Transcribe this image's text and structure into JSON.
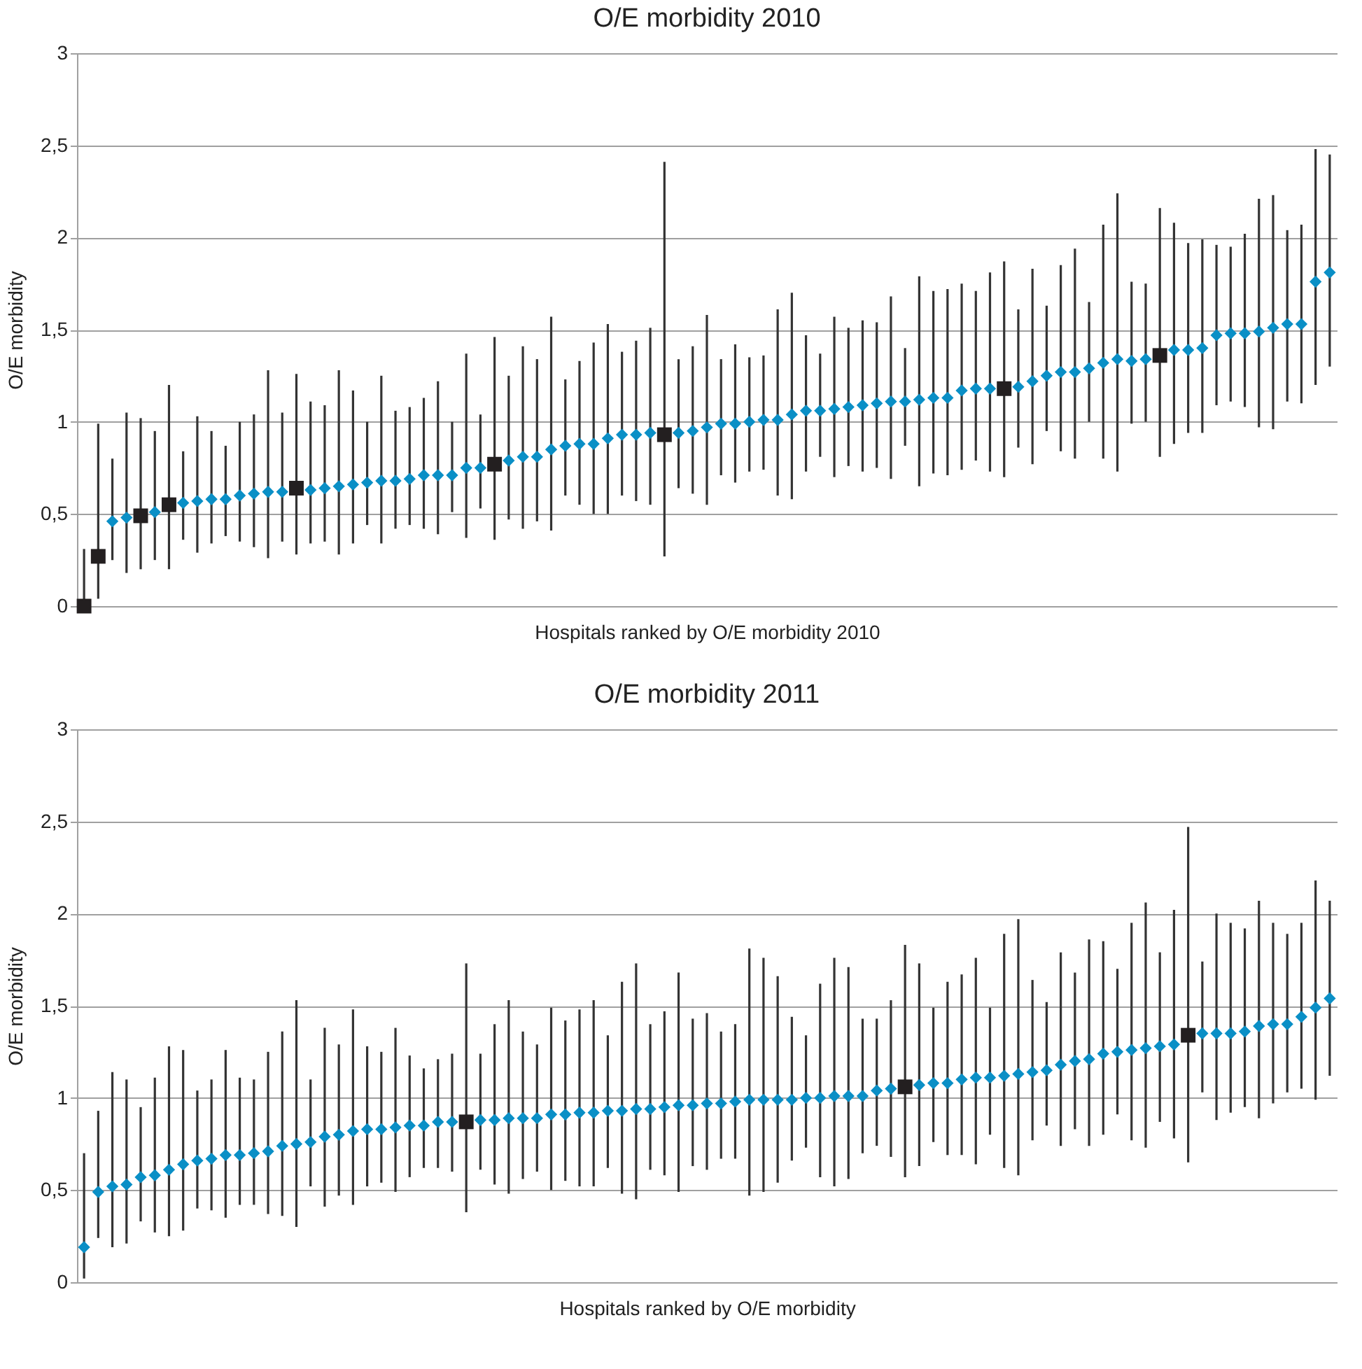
{
  "chart_data": [
    {
      "type": "scatter",
      "title": "O/E morbidity 2010",
      "xlabel": "Hospitals ranked by O/E morbidity 2010",
      "ylabel": "O/E morbidity",
      "categories": [
        null,
        null,
        null,
        null,
        null,
        null,
        null,
        null,
        null,
        null,
        null,
        null,
        null,
        null,
        null,
        null,
        null,
        null,
        null,
        null,
        null,
        null,
        null,
        null,
        null,
        null,
        null,
        null,
        null,
        null,
        null,
        null,
        null,
        null,
        null,
        null,
        null,
        null,
        null,
        null,
        null,
        null,
        null,
        null,
        null,
        null,
        null,
        null,
        null,
        null,
        null,
        null,
        null,
        null,
        null,
        null,
        null,
        null,
        null,
        null,
        null,
        null,
        null,
        null,
        null,
        null,
        null,
        null,
        null,
        null,
        null,
        null,
        null,
        null,
        null,
        null,
        null,
        null,
        null,
        null,
        null,
        null,
        null,
        null,
        null,
        null,
        null,
        null,
        null
      ],
      "ylim": [
        0,
        3
      ],
      "yticks": [
        0,
        {
          "value": 0.5,
          "label": "0,5"
        },
        1,
        {
          "value": 1.5,
          "label": "1,5"
        },
        2,
        {
          "value": 2.5,
          "label": "2,5"
        },
        3
      ],
      "grid": "y",
      "tick_labels": "y",
      "series": [
        {
          "color": "#0a8fc6",
          "marker": "diamond",
          "values": [
            null,
            null,
            0.46,
            0.48,
            null,
            0.51,
            null,
            0.56,
            0.57,
            0.58,
            0.58,
            0.6,
            0.61,
            0.62,
            0.62,
            null,
            0.63,
            0.64,
            0.65,
            0.66,
            0.67,
            0.68,
            0.68,
            0.69,
            0.71,
            0.71,
            0.71,
            0.75,
            0.75,
            null,
            0.79,
            0.81,
            0.81,
            0.85,
            0.87,
            0.88,
            0.88,
            0.91,
            0.93,
            0.93,
            0.94,
            null,
            0.94,
            0.95,
            0.97,
            0.99,
            0.99,
            1.0,
            1.01,
            1.01,
            1.04,
            1.06,
            1.06,
            1.07,
            1.08,
            1.09,
            1.1,
            1.11,
            1.11,
            1.12,
            1.13,
            1.13,
            1.17,
            1.18,
            1.18,
            null,
            1.19,
            1.22,
            1.25,
            1.27,
            1.27,
            1.29,
            1.32,
            1.34,
            1.33,
            1.34,
            null,
            1.39,
            1.39,
            1.4,
            1.47,
            1.48,
            1.48,
            1.49,
            1.51,
            1.53,
            1.53,
            1.76,
            1.81
          ],
          "errors": [
            null,
            null,
            [
              0.25,
              0.8
            ],
            [
              0.18,
              1.05
            ],
            null,
            [
              0.25,
              0.95
            ],
            null,
            [
              0.36,
              0.84
            ],
            [
              0.29,
              1.03
            ],
            [
              0.34,
              0.95
            ],
            [
              0.38,
              0.87
            ],
            [
              0.35,
              1.0
            ],
            [
              0.32,
              1.04
            ],
            [
              0.26,
              1.28
            ],
            [
              0.35,
              1.05
            ],
            null,
            [
              0.34,
              1.11
            ],
            [
              0.35,
              1.09
            ],
            [
              0.28,
              1.28
            ],
            [
              0.34,
              1.17
            ],
            [
              0.44,
              1.0
            ],
            [
              0.34,
              1.25
            ],
            [
              0.42,
              1.06
            ],
            [
              0.44,
              1.08
            ],
            [
              0.42,
              1.13
            ],
            [
              0.39,
              1.22
            ],
            [
              0.51,
              1.0
            ],
            [
              0.37,
              1.37
            ],
            [
              0.53,
              1.04
            ],
            null,
            [
              0.47,
              1.25
            ],
            [
              0.42,
              1.41
            ],
            [
              0.46,
              1.34
            ],
            [
              0.41,
              1.57
            ],
            [
              0.6,
              1.23
            ],
            [
              0.55,
              1.33
            ],
            [
              0.5,
              1.43
            ],
            [
              0.5,
              1.53
            ],
            [
              0.6,
              1.38
            ],
            [
              0.57,
              1.44
            ],
            [
              0.55,
              1.51
            ],
            null,
            [
              0.64,
              1.34
            ],
            [
              0.61,
              1.41
            ],
            [
              0.55,
              1.58
            ],
            [
              0.71,
              1.34
            ],
            [
              0.67,
              1.42
            ],
            [
              0.73,
              1.35
            ],
            [
              0.74,
              1.36
            ],
            [
              0.6,
              1.61
            ],
            [
              0.58,
              1.7
            ],
            [
              0.73,
              1.47
            ],
            [
              0.81,
              1.37
            ],
            [
              0.7,
              1.57
            ],
            [
              0.76,
              1.51
            ],
            [
              0.73,
              1.55
            ],
            [
              0.75,
              1.54
            ],
            [
              0.69,
              1.68
            ],
            [
              0.87,
              1.4
            ],
            [
              0.65,
              1.79
            ],
            [
              0.72,
              1.71
            ],
            [
              0.71,
              1.72
            ],
            [
              0.74,
              1.75
            ],
            [
              0.79,
              1.71
            ],
            [
              0.73,
              1.81
            ],
            null,
            [
              0.86,
              1.61
            ],
            [
              0.77,
              1.83
            ],
            [
              0.95,
              1.63
            ],
            [
              0.84,
              1.85
            ],
            [
              0.8,
              1.94
            ],
            [
              1.0,
              1.65
            ],
            [
              0.8,
              2.07
            ],
            [
              0.73,
              2.24
            ],
            [
              0.99,
              1.76
            ],
            [
              1.0,
              1.75
            ],
            null,
            [
              0.88,
              2.08
            ],
            [
              0.94,
              1.97
            ],
            [
              0.94,
              1.99
            ],
            [
              1.09,
              1.96
            ],
            [
              1.11,
              1.95
            ],
            [
              1.08,
              2.02
            ],
            [
              0.97,
              2.21
            ],
            [
              0.96,
              2.23
            ],
            [
              1.11,
              2.04
            ],
            [
              1.1,
              2.07
            ],
            [
              1.2,
              2.48
            ],
            [
              1.3,
              2.45
            ]
          ]
        },
        {
          "color": "#231f20",
          "marker": "square",
          "values": [
            0.0,
            0.27,
            null,
            null,
            0.49,
            null,
            0.55,
            null,
            null,
            null,
            null,
            null,
            null,
            null,
            null,
            0.64,
            null,
            null,
            null,
            null,
            null,
            null,
            null,
            null,
            null,
            null,
            null,
            null,
            null,
            0.77,
            null,
            null,
            null,
            null,
            null,
            null,
            null,
            null,
            null,
            null,
            null,
            0.93,
            null,
            null,
            null,
            null,
            null,
            null,
            null,
            null,
            null,
            null,
            null,
            null,
            null,
            null,
            null,
            null,
            null,
            null,
            null,
            null,
            null,
            null,
            null,
            1.18,
            null,
            null,
            null,
            null,
            null,
            null,
            null,
            null,
            null,
            null,
            1.36,
            null,
            null,
            null,
            null,
            null,
            null,
            null,
            null,
            null,
            null,
            null,
            null
          ],
          "errors": [
            [
              0,
              0.31
            ],
            [
              0.04,
              0.99
            ],
            null,
            null,
            [
              0.2,
              1.02
            ],
            null,
            [
              0.2,
              1.2
            ],
            null,
            null,
            null,
            null,
            null,
            null,
            null,
            null,
            [
              0.28,
              1.26
            ],
            null,
            null,
            null,
            null,
            null,
            null,
            null,
            null,
            null,
            null,
            null,
            null,
            null,
            [
              0.36,
              1.46
            ],
            null,
            null,
            null,
            null,
            null,
            null,
            null,
            null,
            null,
            null,
            null,
            [
              0.27,
              2.41
            ],
            null,
            null,
            null,
            null,
            null,
            null,
            null,
            null,
            null,
            null,
            null,
            null,
            null,
            null,
            null,
            null,
            null,
            null,
            null,
            null,
            null,
            null,
            null,
            [
              0.7,
              1.87
            ],
            null,
            null,
            null,
            null,
            null,
            null,
            null,
            null,
            null,
            null,
            [
              0.81,
              2.16
            ],
            null,
            null,
            null,
            null,
            null,
            null,
            null,
            null,
            null,
            null,
            null,
            null
          ]
        }
      ]
    },
    {
      "type": "scatter",
      "title": "O/E morbidity 2011",
      "xlabel": "Hospitals ranked by O/E morbidity",
      "ylabel": "O/E morbidity",
      "categories": [
        null,
        null,
        null,
        null,
        null,
        null,
        null,
        null,
        null,
        null,
        null,
        null,
        null,
        null,
        null,
        null,
        null,
        null,
        null,
        null,
        null,
        null,
        null,
        null,
        null,
        null,
        null,
        null,
        null,
        null,
        null,
        null,
        null,
        null,
        null,
        null,
        null,
        null,
        null,
        null,
        null,
        null,
        null,
        null,
        null,
        null,
        null,
        null,
        null,
        null,
        null,
        null,
        null,
        null,
        null,
        null,
        null,
        null,
        null,
        null,
        null,
        null,
        null,
        null,
        null,
        null,
        null,
        null,
        null,
        null,
        null,
        null,
        null,
        null,
        null,
        null,
        null,
        null,
        null,
        null,
        null,
        null,
        null,
        null,
        null,
        null,
        null,
        null,
        null
      ],
      "ylim": [
        0,
        3
      ],
      "yticks": [
        0,
        {
          "value": 0.5,
          "label": "0,5"
        },
        1,
        {
          "value": 1.5,
          "label": "1,5"
        },
        2,
        {
          "value": 2.5,
          "label": "2,5"
        },
        3
      ],
      "grid": "y",
      "tick_labels": "y",
      "series": [
        {
          "color": "#0a8fc6",
          "marker": "diamond",
          "values": [
            0.19,
            0.49,
            0.52,
            0.53,
            0.57,
            0.58,
            0.61,
            0.64,
            0.66,
            0.67,
            0.69,
            0.69,
            0.7,
            0.71,
            0.74,
            0.75,
            0.76,
            0.79,
            0.8,
            0.82,
            0.83,
            0.83,
            0.84,
            0.85,
            0.85,
            0.87,
            0.87,
            null,
            0.88,
            0.88,
            0.89,
            0.89,
            0.89,
            0.91,
            0.91,
            0.92,
            0.92,
            0.93,
            0.93,
            0.94,
            0.94,
            0.95,
            0.96,
            0.96,
            0.97,
            0.97,
            0.98,
            0.99,
            0.99,
            0.99,
            0.99,
            1.0,
            1.0,
            1.01,
            1.01,
            1.01,
            1.04,
            1.05,
            null,
            1.07,
            1.08,
            1.08,
            1.1,
            1.11,
            1.11,
            1.12,
            1.13,
            1.14,
            1.15,
            1.18,
            1.2,
            1.21,
            1.24,
            1.25,
            1.26,
            1.27,
            1.28,
            1.29,
            null,
            1.35,
            1.35,
            1.35,
            1.36,
            1.39,
            1.4,
            1.4,
            1.44,
            1.49,
            1.54
          ],
          "errors": [
            [
              0.02,
              0.7
            ],
            [
              0.24,
              0.93
            ],
            [
              0.19,
              1.14
            ],
            [
              0.21,
              1.1
            ],
            [
              0.33,
              0.95
            ],
            [
              0.27,
              1.11
            ],
            [
              0.25,
              1.28
            ],
            [
              0.28,
              1.26
            ],
            [
              0.4,
              1.04
            ],
            [
              0.39,
              1.1
            ],
            [
              0.35,
              1.26
            ],
            [
              0.42,
              1.11
            ],
            [
              0.42,
              1.1
            ],
            [
              0.37,
              1.25
            ],
            [
              0.36,
              1.36
            ],
            [
              0.3,
              1.53
            ],
            [
              0.52,
              1.1
            ],
            [
              0.41,
              1.38
            ],
            [
              0.47,
              1.29
            ],
            [
              0.42,
              1.48
            ],
            [
              0.52,
              1.28
            ],
            [
              0.54,
              1.25
            ],
            [
              0.49,
              1.38
            ],
            [
              0.57,
              1.23
            ],
            [
              0.62,
              1.16
            ],
            [
              0.62,
              1.21
            ],
            [
              0.6,
              1.24
            ],
            null,
            [
              0.61,
              1.24
            ],
            [
              0.53,
              1.4
            ],
            [
              0.48,
              1.53
            ],
            [
              0.56,
              1.36
            ],
            [
              0.6,
              1.29
            ],
            [
              0.5,
              1.49
            ],
            [
              0.55,
              1.42
            ],
            [
              0.52,
              1.48
            ],
            [
              0.52,
              1.53
            ],
            [
              0.62,
              1.34
            ],
            [
              0.48,
              1.63
            ],
            [
              0.45,
              1.73
            ],
            [
              0.61,
              1.4
            ],
            [
              0.58,
              1.47
            ],
            [
              0.49,
              1.68
            ],
            [
              0.63,
              1.43
            ],
            [
              0.61,
              1.46
            ],
            [
              0.67,
              1.36
            ],
            [
              0.67,
              1.4
            ],
            [
              0.47,
              1.81
            ],
            [
              0.49,
              1.76
            ],
            [
              0.54,
              1.66
            ],
            [
              0.66,
              1.44
            ],
            [
              0.73,
              1.34
            ],
            [
              0.57,
              1.62
            ],
            [
              0.52,
              1.76
            ],
            [
              0.56,
              1.71
            ],
            [
              0.7,
              1.43
            ],
            [
              0.74,
              1.43
            ],
            [
              0.68,
              1.53
            ],
            null,
            [
              0.63,
              1.73
            ],
            [
              0.76,
              1.49
            ],
            [
              0.69,
              1.63
            ],
            [
              0.69,
              1.67
            ],
            [
              0.64,
              1.76
            ],
            [
              0.8,
              1.49
            ],
            [
              0.62,
              1.89
            ],
            [
              0.58,
              1.97
            ],
            [
              0.77,
              1.64
            ],
            [
              0.85,
              1.52
            ],
            [
              0.74,
              1.79
            ],
            [
              0.83,
              1.68
            ],
            [
              0.74,
              1.86
            ],
            [
              0.8,
              1.85
            ],
            [
              0.91,
              1.7
            ],
            [
              0.77,
              1.95
            ],
            [
              0.73,
              2.06
            ],
            [
              0.87,
              1.79
            ],
            [
              0.78,
              2.02
            ],
            null,
            [
              1.03,
              1.74
            ],
            [
              0.88,
              2.0
            ],
            [
              0.92,
              1.95
            ],
            [
              0.95,
              1.92
            ],
            [
              0.89,
              2.07
            ],
            [
              0.97,
              1.95
            ],
            [
              1.03,
              1.89
            ],
            [
              1.05,
              1.95
            ],
            [
              0.99,
              2.18
            ],
            [
              1.12,
              2.07
            ]
          ]
        },
        {
          "color": "#231f20",
          "marker": "square",
          "values": [
            null,
            null,
            null,
            null,
            null,
            null,
            null,
            null,
            null,
            null,
            null,
            null,
            null,
            null,
            null,
            null,
            null,
            null,
            null,
            null,
            null,
            null,
            null,
            null,
            null,
            null,
            null,
            0.87,
            null,
            null,
            null,
            null,
            null,
            null,
            null,
            null,
            null,
            null,
            null,
            null,
            null,
            null,
            null,
            null,
            null,
            null,
            null,
            null,
            null,
            null,
            null,
            null,
            null,
            null,
            null,
            null,
            null,
            null,
            1.06,
            null,
            null,
            null,
            null,
            null,
            null,
            null,
            null,
            null,
            null,
            null,
            null,
            null,
            null,
            null,
            null,
            null,
            null,
            null,
            1.34,
            null,
            null,
            null,
            null,
            null,
            null,
            null,
            null,
            null,
            null
          ],
          "errors": [
            null,
            null,
            null,
            null,
            null,
            null,
            null,
            null,
            null,
            null,
            null,
            null,
            null,
            null,
            null,
            null,
            null,
            null,
            null,
            null,
            null,
            null,
            null,
            null,
            null,
            null,
            null,
            [
              0.38,
              1.73
            ],
            null,
            null,
            null,
            null,
            null,
            null,
            null,
            null,
            null,
            null,
            null,
            null,
            null,
            null,
            null,
            null,
            null,
            null,
            null,
            null,
            null,
            null,
            null,
            null,
            null,
            null,
            null,
            null,
            null,
            null,
            [
              0.57,
              1.83
            ],
            null,
            null,
            null,
            null,
            null,
            null,
            null,
            null,
            null,
            null,
            null,
            null,
            null,
            null,
            null,
            null,
            null,
            null,
            null,
            [
              0.65,
              2.47
            ],
            null,
            null,
            null,
            null,
            null,
            null,
            null,
            null,
            null,
            null
          ]
        }
      ]
    }
  ]
}
